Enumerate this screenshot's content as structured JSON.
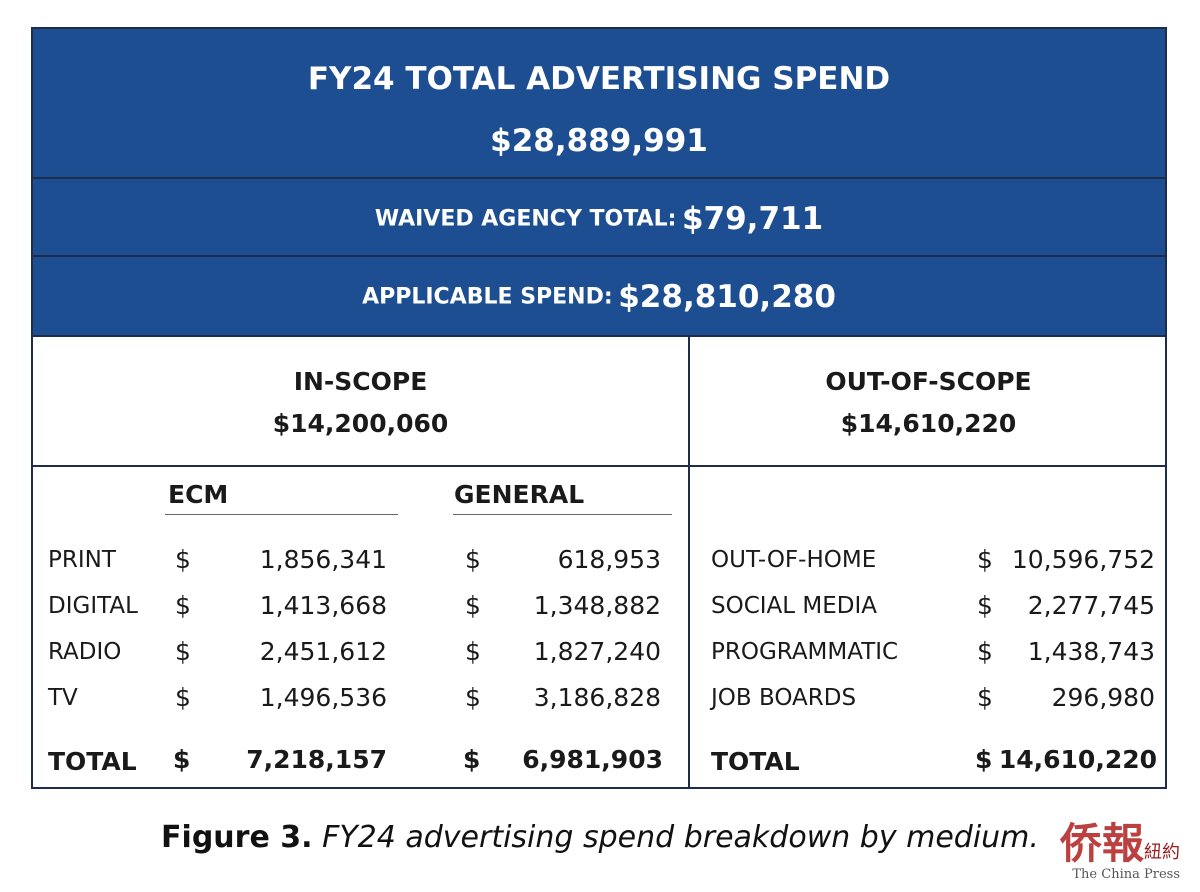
{
  "header": {
    "title": "FY24 TOTAL ADVERTISING SPEND",
    "total": "$28,889,991",
    "waived_label": "WAIVED AGENCY TOTAL:",
    "waived_value": "$79,711",
    "applicable_label": "APPLICABLE SPEND:",
    "applicable_value": "$28,810,280"
  },
  "in_scope": {
    "label": "IN-SCOPE",
    "value": "$14,200,060",
    "ecm_label": "ECM",
    "general_label": "GENERAL",
    "rows": [
      {
        "label": "PRINT",
        "ecm_cur": "$",
        "ecm": "1,856,341",
        "gen_cur": "$",
        "general": "618,953"
      },
      {
        "label": "DIGITAL",
        "ecm_cur": "$",
        "ecm": "1,413,668",
        "gen_cur": "$",
        "general": "1,348,882"
      },
      {
        "label": "RADIO",
        "ecm_cur": "$",
        "ecm": "2,451,612",
        "gen_cur": "$",
        "general": "1,827,240"
      },
      {
        "label": "TV",
        "ecm_cur": "$",
        "ecm": "1,496,536",
        "gen_cur": "$",
        "general": "3,186,828"
      }
    ],
    "total": {
      "label": "TOTAL",
      "ecm_cur": "$",
      "ecm": "7,218,157",
      "gen_cur": "$",
      "general": "6,981,903"
    }
  },
  "out_scope": {
    "label": "OUT-OF-SCOPE",
    "value": "$14,610,220",
    "rows": [
      {
        "label": "OUT-OF-HOME",
        "cur": "$",
        "value": "10,596,752"
      },
      {
        "label": "SOCIAL MEDIA",
        "cur": "$",
        "value": "2,277,745"
      },
      {
        "label": "PROGRAMMATIC",
        "cur": "$",
        "value": "1,438,743"
      },
      {
        "label": "JOB BOARDS",
        "cur": "$",
        "value": "296,980"
      }
    ],
    "total": {
      "label": "TOTAL",
      "cur": "$",
      "value": "14,610,220"
    }
  },
  "caption": {
    "figure": "Figure 3.",
    "text": "FY24 advertising spend breakdown by medium."
  },
  "watermark": {
    "chinese": "侨報",
    "sub_chinese": "紐約",
    "english": "The China Press"
  },
  "colors": {
    "band": "#1d4e91",
    "border": "#1f2d4a"
  }
}
